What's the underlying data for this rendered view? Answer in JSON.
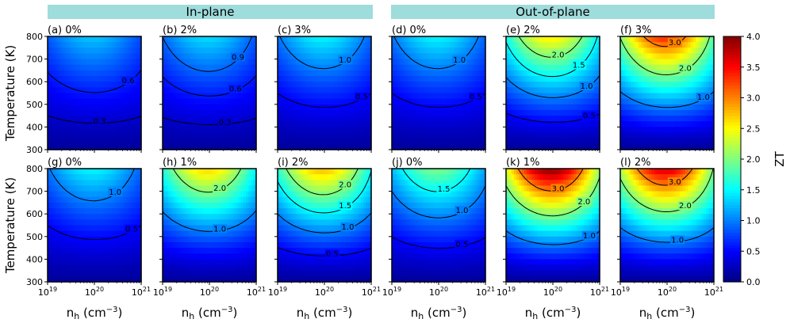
{
  "chart_data": {
    "type": "heatmap",
    "banners": [
      "In-plane",
      "Out-of-plane"
    ],
    "xlabel": "n_h (cm^-3)",
    "xlabel_parts": {
      "base": "n",
      "sub": "h",
      "mid": " (cm",
      "sup": "−3",
      "end": ")"
    },
    "ylabel": "Temperature (K)",
    "x_range": [
      1e+19,
      1e+21
    ],
    "x_scale": "log",
    "x_ticks": [
      {
        "base": "10",
        "exp": "19"
      },
      {
        "base": "10",
        "exp": "20"
      },
      {
        "base": "10",
        "exp": "21"
      }
    ],
    "y_range": [
      300,
      800
    ],
    "y_ticks": [
      300,
      400,
      500,
      600,
      700,
      800
    ],
    "colorbar": {
      "label": "ZT",
      "range": [
        0,
        4
      ],
      "ticks": [
        "0.0",
        "0.5",
        "1.0",
        "1.5",
        "2.0",
        "2.5",
        "3.0",
        "3.5",
        "4.0"
      ],
      "colormap": "jet"
    },
    "panels": [
      {
        "id": "a",
        "title": "(a) 0%",
        "group": "In-plane",
        "peak_zt_at_800K": 1.1,
        "contours": [
          {
            "level": 0.3,
            "label": "0.3"
          },
          {
            "level": 0.6,
            "label": "0.6"
          }
        ]
      },
      {
        "id": "b",
        "title": "(b) 2%",
        "group": "In-plane",
        "peak_zt_at_800K": 1.2,
        "contours": [
          {
            "level": 0.3,
            "label": "0.3"
          },
          {
            "level": 0.6,
            "label": "0.6"
          },
          {
            "level": 0.9,
            "label": "0.9"
          }
        ]
      },
      {
        "id": "c",
        "title": "(c) 3%",
        "group": "In-plane",
        "peak_zt_at_800K": 1.3,
        "contours": [
          {
            "level": 0.5,
            "label": "0.5"
          },
          {
            "level": 1.0,
            "label": "1.0"
          }
        ]
      },
      {
        "id": "d",
        "title": "(d) 0%",
        "group": "Out-of-plane",
        "peak_zt_at_800K": 1.3,
        "contours": [
          {
            "level": 0.5,
            "label": "0.5"
          },
          {
            "level": 1.0,
            "label": "1.0"
          }
        ]
      },
      {
        "id": "e",
        "title": "(e) 2%",
        "group": "Out-of-plane",
        "peak_zt_at_800K": 2.4,
        "contours": [
          {
            "level": 0.5,
            "label": "0.5"
          },
          {
            "level": 1.0,
            "label": "1.0"
          },
          {
            "level": 1.5,
            "label": "1.5"
          },
          {
            "level": 2.0,
            "label": "2.0"
          }
        ]
      },
      {
        "id": "f",
        "title": "(f) 3%",
        "group": "Out-of-plane",
        "peak_zt_at_800K": 3.2,
        "contours": [
          {
            "level": 1.0,
            "label": "1.0"
          },
          {
            "level": 2.0,
            "label": "2.0"
          },
          {
            "level": 3.0,
            "label": "3.0"
          }
        ]
      },
      {
        "id": "g",
        "title": "(g) 0%",
        "group": "In-plane",
        "peak_zt_at_800K": 1.3,
        "contours": [
          {
            "level": 0.5,
            "label": "0.5"
          },
          {
            "level": 1.0,
            "label": "1.0"
          }
        ]
      },
      {
        "id": "h",
        "title": "(h) 1%",
        "group": "In-plane",
        "peak_zt_at_800K": 2.5,
        "contours": [
          {
            "level": 1.0,
            "label": "1.0"
          },
          {
            "level": 2.0,
            "label": "2.0"
          }
        ]
      },
      {
        "id": "i",
        "title": "(i) 2%",
        "group": "In-plane",
        "peak_zt_at_800K": 2.6,
        "contours": [
          {
            "level": 0.5,
            "label": "0.5"
          },
          {
            "level": 1.0,
            "label": "1.0"
          },
          {
            "level": 1.5,
            "label": "1.5"
          },
          {
            "level": 2.0,
            "label": "2.0"
          }
        ]
      },
      {
        "id": "j",
        "title": "(j) 0%",
        "group": "Out-of-plane",
        "peak_zt_at_800K": 1.8,
        "contours": [
          {
            "level": 0.5,
            "label": "0.5"
          },
          {
            "level": 1.0,
            "label": "1.0"
          },
          {
            "level": 1.5,
            "label": "1.5"
          }
        ]
      },
      {
        "id": "k",
        "title": "(k) 1%",
        "group": "Out-of-plane",
        "peak_zt_at_800K": 3.8,
        "contours": [
          {
            "level": 1.0,
            "label": "1.0"
          },
          {
            "level": 2.0,
            "label": "2.0"
          },
          {
            "level": 3.0,
            "label": "3.0"
          }
        ]
      },
      {
        "id": "l",
        "title": "(l) 2%",
        "group": "Out-of-plane",
        "peak_zt_at_800K": 3.5,
        "contours": [
          {
            "level": 1.0,
            "label": "1.0"
          },
          {
            "level": 2.0,
            "label": "2.0"
          },
          {
            "level": 3.0,
            "label": "3.0"
          }
        ]
      }
    ]
  }
}
